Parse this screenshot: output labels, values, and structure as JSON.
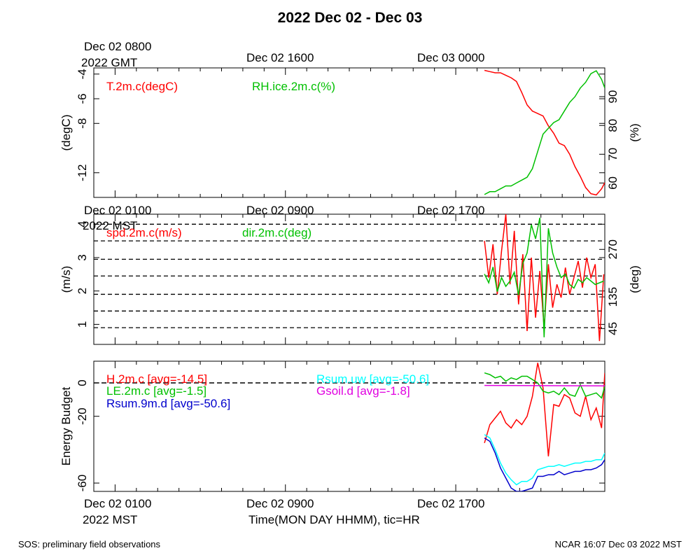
{
  "title": "2022 Dec 02 - Dec 03",
  "top_time_axis": {
    "ticks": [
      "Dec 02 0800",
      "Dec 02 1600",
      "Dec 03 0000"
    ],
    "zone_label": "2022 GMT"
  },
  "mid_time_axis": {
    "ticks": [
      "Dec 02 0100",
      "Dec 02 0900",
      "Dec 02 1700"
    ],
    "zone_label": "2022 MST"
  },
  "bottom_time_axis": {
    "ticks": [
      "Dec 02 0100",
      "Dec 02 0900",
      "Dec 02 1700"
    ],
    "zone_label": "2022 MST",
    "axis_title": "Time(MON DAY HHMM), tic=HR"
  },
  "footer": {
    "left": "SOS: preliminary field observations",
    "right": "NCAR 16:07 Dec 03 2022 MST"
  },
  "colors": {
    "red": "#ff0000",
    "green": "#00c000",
    "blue": "#0000cc",
    "cyan": "#00ffff",
    "magenta": "#e000e0"
  },
  "chart_data": [
    {
      "type": "line",
      "panel": "temperature-humidity",
      "x_unit": "hours since Dec 02 0000 MST",
      "xlim": [
        0,
        24
      ],
      "ylabel": "(degC)",
      "ylim": [
        -14,
        -3.5
      ],
      "yticks": [
        -12,
        -8,
        -6,
        -4
      ],
      "ylabel_right": "(%)",
      "ylim_right": [
        55,
        100
      ],
      "yticks_right": [
        60,
        70,
        80,
        90
      ],
      "legend": [
        "T.2m.c(degC)",
        "RH.ice.2m.c(%)"
      ],
      "series": [
        {
          "name": "T.2m.c(degC)",
          "axis": "left",
          "color": "#ff0000",
          "x": [
            18.35,
            18.6,
            18.85,
            19.1,
            19.35,
            19.6,
            19.85,
            20.1,
            20.35,
            20.6,
            20.85,
            21.1,
            21.35,
            21.6,
            21.85,
            22.1,
            22.35,
            22.6,
            22.85,
            23.1,
            23.35,
            23.6,
            23.85,
            24.0
          ],
          "y": [
            -3.7,
            -3.8,
            -3.9,
            -3.9,
            -4.1,
            -4.3,
            -4.6,
            -5.5,
            -6.5,
            -7.0,
            -7.2,
            -7.4,
            -8.2,
            -8.8,
            -9.6,
            -9.8,
            -10.5,
            -11.5,
            -12.3,
            -13.2,
            -13.7,
            -13.8,
            -13.3,
            -12.8
          ]
        },
        {
          "name": "RH.ice.2m.c(%)",
          "axis": "right",
          "color": "#00c000",
          "x": [
            18.35,
            18.6,
            18.85,
            19.1,
            19.35,
            19.6,
            19.85,
            20.1,
            20.35,
            20.6,
            20.85,
            21.1,
            21.35,
            21.6,
            21.85,
            22.1,
            22.35,
            22.6,
            22.85,
            23.1,
            23.35,
            23.6,
            23.85,
            24.0
          ],
          "y": [
            56,
            57,
            57,
            58,
            59,
            59,
            60,
            61,
            62,
            65,
            71,
            77,
            79,
            81,
            82,
            85,
            88,
            90,
            93,
            95,
            98,
            99,
            96,
            93
          ]
        }
      ]
    },
    {
      "type": "line",
      "panel": "wind",
      "x_unit": "hours since Dec 02 0000 MST",
      "xlim": [
        0,
        24
      ],
      "ylabel": "(m/s)",
      "ylim": [
        0.4,
        4.3
      ],
      "yticks": [
        1,
        2,
        3,
        4
      ],
      "ylabel_right": "(deg)",
      "ylim_right": [
        0,
        370
      ],
      "yticks_right": [
        45,
        135,
        270
      ],
      "legend": [
        "spd.2m.c(m/s)",
        "dir.2m.c(deg)"
      ],
      "series": [
        {
          "name": "spd.2m.c(m/s)",
          "axis": "left",
          "color": "#ff0000",
          "x": [
            18.35,
            18.55,
            18.75,
            18.95,
            19.15,
            19.35,
            19.55,
            19.75,
            19.95,
            20.15,
            20.35,
            20.55,
            20.75,
            20.95,
            21.15,
            21.35,
            21.55,
            21.75,
            21.95,
            22.15,
            22.35,
            22.55,
            22.75,
            22.95,
            23.15,
            23.35,
            23.55,
            23.75,
            23.95
          ],
          "y": [
            3.5,
            2.4,
            3.4,
            1.9,
            3.2,
            4.3,
            2.2,
            3.8,
            1.6,
            3.1,
            0.8,
            3.0,
            1.2,
            2.6,
            0.9,
            2.8,
            1.5,
            2.2,
            1.8,
            2.7,
            1.9,
            2.4,
            2.9,
            2.1,
            3.0,
            2.4,
            2.8,
            0.5,
            2.5
          ]
        },
        {
          "name": "dir.2m.c(deg)",
          "axis": "right",
          "color": "#00c000",
          "x": [
            18.35,
            18.55,
            18.75,
            18.95,
            19.15,
            19.35,
            19.55,
            19.75,
            19.95,
            20.15,
            20.35,
            20.55,
            20.75,
            20.95,
            21.15,
            21.35,
            21.55,
            21.75,
            21.95,
            22.15,
            22.35,
            22.55,
            22.75,
            22.95,
            23.15,
            23.35,
            23.55,
            23.75,
            23.95
          ],
          "y": [
            200,
            175,
            220,
            150,
            190,
            165,
            180,
            205,
            140,
            230,
            260,
            340,
            300,
            360,
            20,
            330,
            260,
            220,
            190,
            200,
            170,
            160,
            185,
            175,
            190,
            180,
            170,
            175,
            180
          ]
        }
      ]
    },
    {
      "type": "line",
      "panel": "energy-budget",
      "x_unit": "hours since Dec 02 0000 MST",
      "xlim": [
        0,
        24
      ],
      "ylabel": "Energy Budget",
      "ylim": [
        -65,
        13
      ],
      "yticks": [
        -60,
        -20,
        0
      ],
      "legend": [
        "H.2m.c [avg=-14.5]",
        "LE.2m.c [avg=-1.5]",
        "Rsum.9m.d [avg=-50.6]",
        "Rsum.uw [avg=-50.6]",
        "Gsoil.d [avg=-1.8]"
      ],
      "series": [
        {
          "name": "H.2m.c [avg=-14.5]",
          "color": "#ff0000",
          "x": [
            18.35,
            18.6,
            18.85,
            19.1,
            19.35,
            19.6,
            19.85,
            20.1,
            20.35,
            20.6,
            20.85,
            21.1,
            21.35,
            21.6,
            21.85,
            22.1,
            22.35,
            22.6,
            22.85,
            23.1,
            23.35,
            23.6,
            23.85,
            24.0
          ],
          "y": [
            -36,
            -25,
            -21,
            -17,
            -24,
            -27,
            -22,
            -25,
            -20,
            -8,
            12,
            -3,
            -44,
            -13,
            -14,
            -7,
            -9,
            -18,
            -20,
            -8,
            -22,
            -15,
            -27,
            6
          ]
        },
        {
          "name": "LE.2m.c [avg=-1.5]",
          "color": "#00c000",
          "x": [
            18.35,
            18.6,
            18.85,
            19.1,
            19.35,
            19.6,
            19.85,
            20.1,
            20.35,
            20.6,
            20.85,
            21.1,
            21.35,
            21.6,
            21.85,
            22.1,
            22.35,
            22.6,
            22.85,
            23.1,
            23.35,
            23.6,
            23.85,
            24.0
          ],
          "y": [
            6,
            5,
            3,
            4,
            1,
            3,
            2,
            4,
            4,
            2,
            0,
            -5,
            -6,
            -5,
            -7,
            -3,
            -7,
            -8,
            -1,
            -8,
            -7,
            -6,
            -9,
            -2
          ]
        },
        {
          "name": "Rsum.9m.d [avg=-50.6]",
          "color": "#0000cc",
          "x": [
            18.35,
            18.6,
            18.85,
            19.1,
            19.35,
            19.6,
            19.85,
            20.1,
            20.35,
            20.6,
            20.85,
            21.1,
            21.35,
            21.6,
            21.85,
            22.1,
            22.35,
            22.6,
            22.85,
            23.1,
            23.35,
            23.6,
            23.85,
            24.0
          ],
          "y": [
            -33,
            -35,
            -42,
            -51,
            -57,
            -63,
            -65,
            -65,
            -64,
            -63,
            -56,
            -56,
            -55,
            -55,
            -53,
            -55,
            -54,
            -53,
            -53,
            -52,
            -52,
            -51,
            -49,
            -46
          ]
        },
        {
          "name": "Rsum.uw [avg=-50.6]",
          "color": "#00ffff",
          "x": [
            18.35,
            18.6,
            18.85,
            19.1,
            19.35,
            19.6,
            19.85,
            20.1,
            20.35,
            20.6,
            20.85,
            21.1,
            21.35,
            21.6,
            21.85,
            22.1,
            22.35,
            22.6,
            22.85,
            23.1,
            23.35,
            23.6,
            23.85,
            24.0
          ],
          "y": [
            -31,
            -33,
            -40,
            -48,
            -54,
            -58,
            -61,
            -59,
            -59,
            -57,
            -52,
            -51,
            -50,
            -50,
            -49,
            -50,
            -49,
            -48,
            -48,
            -47,
            -47,
            -46,
            -46,
            -42
          ]
        },
        {
          "name": "Gsoil.d [avg=-1.8]",
          "color": "#e000e0",
          "x": [
            18.35,
            24.0
          ],
          "y": [
            -1.5,
            -1.8
          ]
        }
      ]
    }
  ]
}
